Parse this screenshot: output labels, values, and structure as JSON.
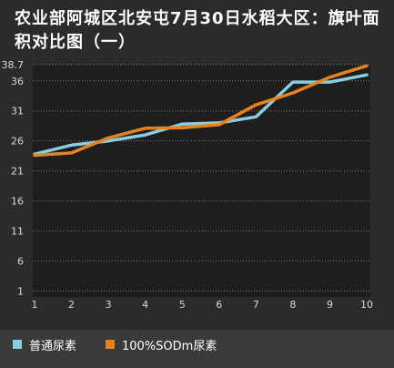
{
  "chart_data": {
    "type": "line",
    "title": "农业部阿城区北安屯7月30日水稻大区：旗叶面积对比图（一）",
    "x": [
      1,
      2,
      3,
      4,
      5,
      6,
      7,
      8,
      9,
      10
    ],
    "yticks": [
      1,
      6,
      11,
      16,
      21,
      26,
      31,
      36,
      38.7
    ],
    "ylim": [
      0,
      38.7
    ],
    "xlim": [
      1,
      10
    ],
    "grid": true,
    "legend_position": "bottom",
    "series": [
      {
        "name": "普通尿素",
        "color": "#89cde0",
        "values": [
          23.8,
          25.3,
          26.0,
          27.0,
          28.8,
          29.0,
          30.0,
          35.8,
          35.8,
          37.0
        ]
      },
      {
        "name": "100%SODm尿素",
        "color": "#e8821e",
        "values": [
          23.6,
          24.0,
          26.5,
          28.1,
          28.2,
          28.7,
          32.0,
          34.0,
          36.6,
          38.5
        ]
      }
    ]
  }
}
